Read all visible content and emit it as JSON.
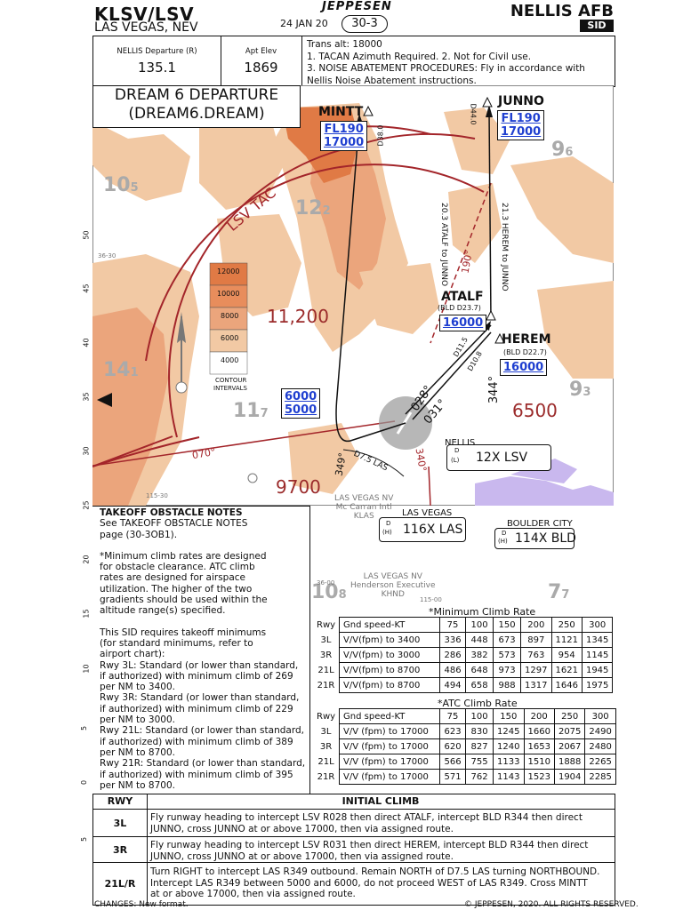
{
  "header": {
    "airport_id": "KLSV/LSV",
    "city": "LAS VEGAS, NEV",
    "date": "24 JAN 20",
    "page": "30-3",
    "logo": "JEPPESEN",
    "facility": "NELLIS AFB",
    "chart_type": "SID"
  },
  "freq": {
    "departure_label": "NELLIS Departure (R)",
    "departure_freq": "135.1",
    "elev_label": "Apt Elev",
    "elev_value": "1869",
    "notes": [
      "Trans alt: 18000",
      "1. TACAN Azimuth Required. 2. Not for Civil use.",
      "3. NOISE ABATEMENT PROCEDURES: Fly in accordance with",
      "Nellis Noise Abatement instructions."
    ]
  },
  "title": {
    "line1": "DREAM 6 DEPARTURE",
    "line2": "(DREAM6.DREAM)"
  },
  "map": {
    "fixes": {
      "mintt": {
        "name": "MINTT",
        "alt1": "FL190",
        "alt2": "17000",
        "radial": "D38.0"
      },
      "junno": {
        "name": "JUNNO",
        "alt1": "FL190",
        "alt2": "17000",
        "radial": "D44.0"
      },
      "atalf": {
        "name": "ATALF",
        "sub": "(BLD D23.7)",
        "alt": "16000"
      },
      "herem": {
        "name": "HEREM",
        "sub": "(BLD D22.7)",
        "alt": "16000"
      }
    },
    "leg_text1": "20.3 ATALF to JUNNO",
    "leg_text2": "21.3 HEREM to JUNNO",
    "courses": {
      "c190": "190°",
      "c028": "028°",
      "c031": "031°",
      "c344": "344°",
      "c070": "070°",
      "c349": "349°",
      "c340": "340°",
      "d115": "D11.5",
      "d108": "D10.8",
      "d75": "D7.5 LAS"
    },
    "alt_window": {
      "top": "6000",
      "bottom": "5000"
    },
    "lsv_tac": "LSV TAC",
    "mora": {
      "m1": "11,200",
      "m2": "6500",
      "m3": "9700"
    },
    "grid": [
      {
        "big": "10",
        "small": "5"
      },
      {
        "big": "12",
        "small": "2"
      },
      {
        "big": "9",
        "small": "6"
      },
      {
        "big": "14",
        "small": "1"
      },
      {
        "big": "11",
        "small": "7"
      },
      {
        "big": "9",
        "small": "3"
      },
      {
        "big": "10",
        "small": "8"
      },
      {
        "big": "7",
        "small": "7"
      }
    ],
    "contour_values": [
      "12000",
      "10000",
      "8000",
      "6000",
      "4000"
    ],
    "contour_label1": "CONTOUR",
    "contour_label2": "INTERVALS",
    "nellis": {
      "name": "NELLIS",
      "ch_prefix": "D",
      "ch_suffix": "(L)",
      "ident": "12X LSV"
    },
    "las_vegas_vor": {
      "name": "LAS VEGAS",
      "ch_prefix": "D",
      "ch_suffix": "(H)",
      "ident": "116X LAS"
    },
    "boulder_vor": {
      "name": "BOULDER CITY",
      "ch_prefix": "D",
      "ch_suffix": "(H)",
      "ident": "114X BLD"
    },
    "mccarran": {
      "l1": "LAS VEGAS NV",
      "l2": "Mc Carran Intl",
      "l3": "KLAS"
    },
    "henderson": {
      "l1": "LAS VEGAS NV",
      "l2": "Henderson Executive",
      "l3": "KHND"
    },
    "lat_ticks": [
      "50",
      "45",
      "40",
      "35",
      "30",
      "25",
      "20",
      "15",
      "10",
      "5",
      "0",
      "5"
    ],
    "lon_small": [
      "36-30",
      "115-30",
      "36-00",
      "115-00",
      "115-00"
    ]
  },
  "obstacle_notes": {
    "title": "TAKEOFF OBSTACLE NOTES",
    "lines1": [
      "See TAKEOFF OBSTACLE NOTES",
      "page (30-3OB1)."
    ],
    "lines2": [
      "*Minimum climb rates are designed",
      "for obstacle clearance. ATC climb",
      "rates are designed for airspace",
      "utilization. The higher of the two",
      "gradients should be used within the",
      "altitude range(s) specified."
    ],
    "lines3": [
      "This SID requires takeoff minimums",
      "(for standard minimums, refer to",
      "airport chart):",
      "Rwy 3L: Standard (or lower than standard,",
      "if authorized) with minimum climb of 269",
      "per NM to 3400.",
      "Rwy 3R: Standard (or lower than standard,",
      "if authorized) with minimum climb of 229",
      "per NM to 3000.",
      "Rwy 21L: Standard (or lower than standard,",
      "if authorized) with minimum climb of 389",
      "per NM to 8700.",
      "Rwy 21R: Standard (or lower than standard,",
      "if authorized) with minimum climb of 395",
      "per NM to 8700."
    ]
  },
  "min_climb": {
    "title": "*Minimum Climb Rate",
    "header": [
      "Rwy",
      "Gnd speed-KT",
      "75",
      "100",
      "150",
      "200",
      "250",
      "300"
    ],
    "rows": [
      [
        "3L",
        "V/V(fpm) to 3400",
        "336",
        "448",
        "673",
        "897",
        "1121",
        "1345"
      ],
      [
        "3R",
        "V/V(fpm) to 3000",
        "286",
        "382",
        "573",
        "763",
        "954",
        "1145"
      ],
      [
        "21L",
        "V/V(fpm) to 8700",
        "486",
        "648",
        "973",
        "1297",
        "1621",
        "1945"
      ],
      [
        "21R",
        "V/V(fpm) to 8700",
        "494",
        "658",
        "988",
        "1317",
        "1646",
        "1975"
      ]
    ]
  },
  "atc_climb": {
    "title": "*ATC Climb Rate",
    "header": [
      "Rwy",
      "Gnd speed-KT",
      "75",
      "100",
      "150",
      "200",
      "250",
      "300"
    ],
    "rows": [
      [
        "3L",
        "V/V (fpm) to 17000",
        "623",
        "830",
        "1245",
        "1660",
        "2075",
        "2490"
      ],
      [
        "3R",
        "V/V (fpm) to 17000",
        "620",
        "827",
        "1240",
        "1653",
        "2067",
        "2480"
      ],
      [
        "21L",
        "V/V (fpm) to 17000",
        "566",
        "755",
        "1133",
        "1510",
        "1888",
        "2265"
      ],
      [
        "21R",
        "V/V (fpm) to 17000",
        "571",
        "762",
        "1143",
        "1523",
        "1904",
        "2285"
      ]
    ]
  },
  "initial_climb": {
    "rwy_header": "RWY",
    "title": "INITIAL CLIMB",
    "rows": [
      {
        "rwy": "3L",
        "lines": [
          "Fly runway heading to intercept LSV R028 then direct ATALF, intercept BLD R344 then direct",
          "JUNNO, cross JUNNO at or above 17000, then via assigned route."
        ]
      },
      {
        "rwy": "3R",
        "lines": [
          "Fly runway heading to intercept LSV R031 then direct HEREM, intercept BLD R344 then direct",
          "JUNNO, cross JUNNO at or above 17000, then via assigned route."
        ]
      },
      {
        "rwy": "21L/R",
        "lines": [
          "Turn RIGHT to intercept LAS R349 outbound. Remain NORTH of D7.5 LAS turning NORTHBOUND.",
          "Intercept LAS R349 between 5000 and 6000, do not proceed WEST of LAS R349. Cross MINTT",
          "at or above 17000, then via assigned route."
        ]
      }
    ]
  },
  "footer": {
    "changes": "CHANGES: New format.",
    "copyright": "© JEPPESEN, 2020. ALL RIGHTS RESERVED."
  },
  "colors": {
    "terrain_dark": "#e07a45",
    "terrain_mid": "#eba57c",
    "terrain_light": "#f2c9a4",
    "mora_red": "#9b2b2b",
    "alt_blue": "#1f3fd0",
    "lake": "#c9b8ee"
  }
}
